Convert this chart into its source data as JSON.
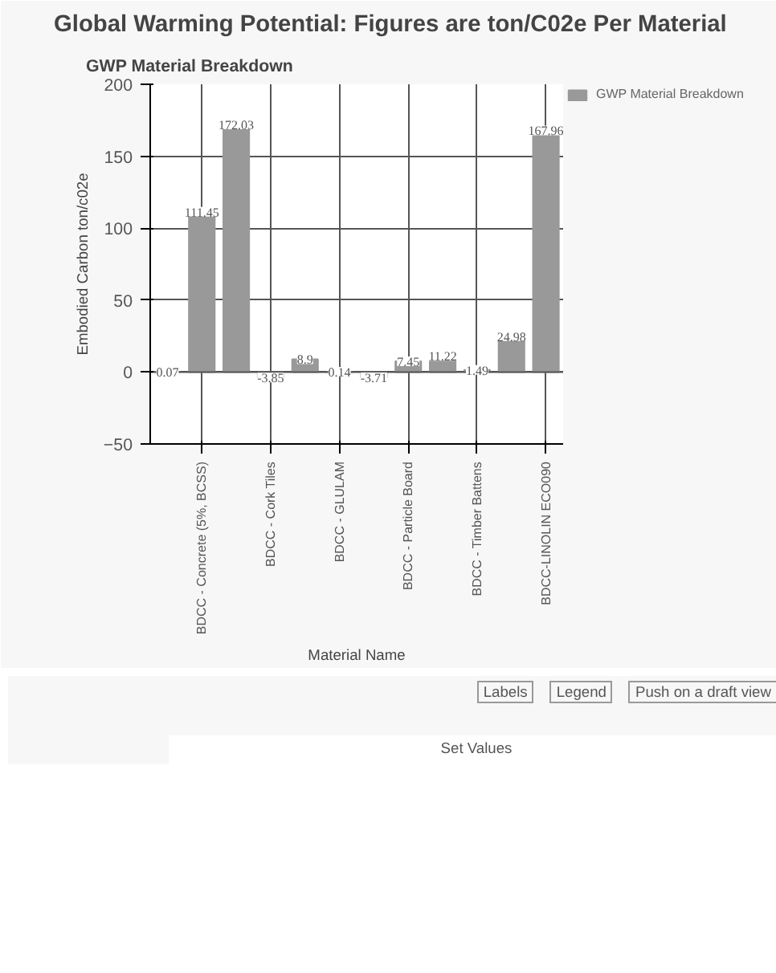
{
  "chart_data": {
    "type": "bar",
    "title": "Global Warming Potential: Figures are ton/C02e Per Material",
    "subtitle": "GWP Material Breakdown",
    "xlabel": "Material Name",
    "ylabel": "Embodied Carbon ton/c02e",
    "categories": [
      null,
      "BDCC - Concrete (5%, BCSS)",
      null,
      "BDCC - Cork Tiles",
      null,
      "BDCC - GLULAM",
      null,
      "BDCC - Particle Board",
      null,
      "BDCC - Timber Battens",
      null,
      "BDCC-LINOLIN ECO090"
    ],
    "series": [
      {
        "name": "GWP Material Breakdown",
        "color": "#999999",
        "values": [
          0.07,
          111.45,
          172.03,
          -3.85,
          8.9,
          0.14,
          -3.71,
          7.45,
          11.22,
          1.49,
          24.98,
          167.96
        ]
      }
    ],
    "ylim": [
      -50,
      200
    ],
    "yticks": [
      -50,
      0,
      50,
      100,
      150,
      200
    ],
    "grid": true,
    "legend": "top right",
    "data_labels": true,
    "annotations": [
      "Labels",
      "Legend",
      "Push on a draft view",
      "Set Values"
    ]
  }
}
